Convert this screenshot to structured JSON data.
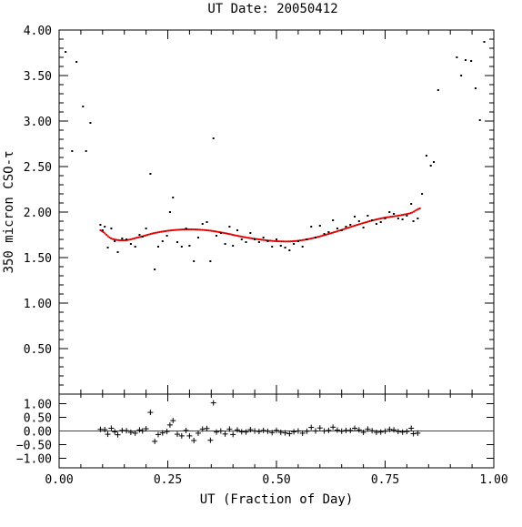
{
  "chart_data": [
    {
      "type": "scatter",
      "title": "UT Date: 20050412",
      "xlabel": "",
      "ylabel": "350 micron CSO-τ",
      "xlim": [
        0,
        1
      ],
      "ylim": [
        0,
        4
      ],
      "x_ticks": [
        "0.00",
        "0.25",
        "0.50",
        "0.75",
        "1.00"
      ],
      "y_ticks": [
        "0.50",
        "1.00",
        "1.50",
        "2.00",
        "2.50",
        "3.00",
        "3.50",
        "4.00"
      ],
      "grid": false,
      "colors": {
        "points": "#000000",
        "fit": "#e00000"
      },
      "series": [
        {
          "points": [
            [
              0.015,
              3.76
            ],
            [
              0.03,
              2.67
            ],
            [
              0.04,
              3.65
            ],
            [
              0.055,
              3.16
            ],
            [
              0.062,
              2.67
            ],
            [
              0.072,
              2.98
            ],
            [
              0.095,
              1.86
            ],
            [
              0.1,
              1.8
            ],
            [
              0.105,
              1.84
            ],
            [
              0.112,
              1.61
            ],
            [
              0.12,
              1.82
            ],
            [
              0.128,
              1.68
            ],
            [
              0.135,
              1.56
            ],
            [
              0.145,
              1.71
            ],
            [
              0.155,
              1.7
            ],
            [
              0.165,
              1.65
            ],
            [
              0.175,
              1.62
            ],
            [
              0.185,
              1.75
            ],
            [
              0.192,
              1.73
            ],
            [
              0.2,
              1.82
            ],
            [
              0.21,
              2.42
            ],
            [
              0.22,
              1.37
            ],
            [
              0.228,
              1.62
            ],
            [
              0.238,
              1.68
            ],
            [
              0.248,
              1.74
            ],
            [
              0.255,
              2.0
            ],
            [
              0.262,
              2.16
            ],
            [
              0.272,
              1.67
            ],
            [
              0.282,
              1.62
            ],
            [
              0.292,
              1.82
            ],
            [
              0.3,
              1.63
            ],
            [
              0.31,
              1.46
            ],
            [
              0.32,
              1.72
            ],
            [
              0.33,
              1.87
            ],
            [
              0.34,
              1.89
            ],
            [
              0.348,
              1.46
            ],
            [
              0.355,
              2.81
            ],
            [
              0.362,
              1.74
            ],
            [
              0.372,
              1.77
            ],
            [
              0.382,
              1.65
            ],
            [
              0.392,
              1.84
            ],
            [
              0.4,
              1.63
            ],
            [
              0.41,
              1.8
            ],
            [
              0.42,
              1.7
            ],
            [
              0.43,
              1.67
            ],
            [
              0.44,
              1.77
            ],
            [
              0.45,
              1.7
            ],
            [
              0.46,
              1.67
            ],
            [
              0.47,
              1.72
            ],
            [
              0.48,
              1.68
            ],
            [
              0.49,
              1.62
            ],
            [
              0.5,
              1.7
            ],
            [
              0.51,
              1.63
            ],
            [
              0.52,
              1.61
            ],
            [
              0.53,
              1.58
            ],
            [
              0.54,
              1.65
            ],
            [
              0.55,
              1.68
            ],
            [
              0.56,
              1.62
            ],
            [
              0.57,
              1.7
            ],
            [
              0.58,
              1.84
            ],
            [
              0.59,
              1.72
            ],
            [
              0.6,
              1.85
            ],
            [
              0.61,
              1.76
            ],
            [
              0.62,
              1.78
            ],
            [
              0.63,
              1.91
            ],
            [
              0.64,
              1.82
            ],
            [
              0.65,
              1.8
            ],
            [
              0.66,
              1.84
            ],
            [
              0.67,
              1.86
            ],
            [
              0.68,
              1.95
            ],
            [
              0.69,
              1.9
            ],
            [
              0.7,
              1.83
            ],
            [
              0.71,
              1.96
            ],
            [
              0.72,
              1.91
            ],
            [
              0.73,
              1.87
            ],
            [
              0.74,
              1.89
            ],
            [
              0.75,
              1.93
            ],
            [
              0.76,
              2.0
            ],
            [
              0.77,
              1.98
            ],
            [
              0.78,
              1.93
            ],
            [
              0.79,
              1.92
            ],
            [
              0.8,
              1.96
            ],
            [
              0.81,
              2.09
            ],
            [
              0.815,
              1.9
            ],
            [
              0.825,
              1.93
            ],
            [
              0.835,
              2.2
            ],
            [
              0.845,
              2.62
            ],
            [
              0.855,
              2.51
            ],
            [
              0.862,
              2.55
            ],
            [
              0.872,
              3.34
            ],
            [
              0.915,
              3.7
            ],
            [
              0.925,
              3.5
            ],
            [
              0.935,
              3.67
            ],
            [
              0.948,
              3.66
            ],
            [
              0.958,
              3.36
            ],
            [
              0.968,
              3.01
            ],
            [
              0.978,
              3.87
            ]
          ]
        },
        {
          "type": "line",
          "style": "dotted",
          "fit_range": [
            0.095,
            0.83
          ],
          "points": [
            [
              0.095,
              1.8
            ],
            [
              0.12,
              1.71
            ],
            [
              0.15,
              1.69
            ],
            [
              0.18,
              1.72
            ],
            [
              0.22,
              1.77
            ],
            [
              0.26,
              1.8
            ],
            [
              0.3,
              1.81
            ],
            [
              0.34,
              1.8
            ],
            [
              0.38,
              1.77
            ],
            [
              0.42,
              1.73
            ],
            [
              0.46,
              1.7
            ],
            [
              0.5,
              1.68
            ],
            [
              0.54,
              1.68
            ],
            [
              0.58,
              1.71
            ],
            [
              0.62,
              1.76
            ],
            [
              0.66,
              1.82
            ],
            [
              0.7,
              1.88
            ],
            [
              0.74,
              1.93
            ],
            [
              0.78,
              1.96
            ],
            [
              0.81,
              1.99
            ],
            [
              0.83,
              2.04
            ]
          ]
        }
      ]
    },
    {
      "type": "scatter",
      "title": "",
      "xlabel": "UT (Fraction of Day)",
      "ylabel": "",
      "xlim": [
        0,
        1
      ],
      "ylim": [
        -1.35,
        1.35
      ],
      "x_ticks": [
        "0.00",
        "0.25",
        "0.50",
        "0.75",
        "1.00"
      ],
      "y_ticks": [
        "1.00",
        "0.50",
        "0.00",
        "−0.50",
        "−1.00"
      ],
      "grid": false,
      "zero_line": true,
      "colors": {
        "points": "#000000",
        "zero_line": "#e00000"
      },
      "series": [
        {
          "marker": "plus",
          "points": [
            [
              0.095,
              0.06
            ],
            [
              0.105,
              0.05
            ],
            [
              0.112,
              -0.12
            ],
            [
              0.12,
              0.1
            ],
            [
              0.128,
              -0.03
            ],
            [
              0.135,
              -0.14
            ],
            [
              0.145,
              0.02
            ],
            [
              0.155,
              0.01
            ],
            [
              0.165,
              -0.05
            ],
            [
              0.175,
              -0.08
            ],
            [
              0.185,
              0.04
            ],
            [
              0.192,
              0.0
            ],
            [
              0.2,
              0.08
            ],
            [
              0.21,
              0.68
            ],
            [
              0.22,
              -0.38
            ],
            [
              0.228,
              -0.13
            ],
            [
              0.238,
              -0.07
            ],
            [
              0.248,
              -0.02
            ],
            [
              0.255,
              0.22
            ],
            [
              0.262,
              0.38
            ],
            [
              0.272,
              -0.12
            ],
            [
              0.282,
              -0.18
            ],
            [
              0.292,
              0.02
            ],
            [
              0.3,
              -0.18
            ],
            [
              0.31,
              -0.35
            ],
            [
              0.32,
              -0.08
            ],
            [
              0.33,
              0.07
            ],
            [
              0.34,
              0.09
            ],
            [
              0.348,
              -0.34
            ],
            [
              0.355,
              1.03
            ],
            [
              0.362,
              -0.04
            ],
            [
              0.372,
              0.0
            ],
            [
              0.382,
              -0.11
            ],
            [
              0.392,
              0.07
            ],
            [
              0.4,
              -0.13
            ],
            [
              0.41,
              0.04
            ],
            [
              0.42,
              -0.03
            ],
            [
              0.43,
              -0.04
            ],
            [
              0.44,
              0.05
            ],
            [
              0.45,
              0.0
            ],
            [
              0.46,
              -0.02
            ],
            [
              0.47,
              0.02
            ],
            [
              0.48,
              -0.01
            ],
            [
              0.49,
              -0.06
            ],
            [
              0.5,
              0.02
            ],
            [
              0.51,
              -0.05
            ],
            [
              0.52,
              -0.07
            ],
            [
              0.53,
              -0.1
            ],
            [
              0.54,
              -0.03
            ],
            [
              0.55,
              0.0
            ],
            [
              0.56,
              -0.08
            ],
            [
              0.57,
              -0.01
            ],
            [
              0.58,
              0.13
            ],
            [
              0.59,
              0.0
            ],
            [
              0.6,
              0.11
            ],
            [
              0.61,
              0.0
            ],
            [
              0.62,
              0.02
            ],
            [
              0.63,
              0.14
            ],
            [
              0.64,
              0.03
            ],
            [
              0.65,
              -0.01
            ],
            [
              0.66,
              0.02
            ],
            [
              0.67,
              0.02
            ],
            [
              0.68,
              0.1
            ],
            [
              0.69,
              0.04
            ],
            [
              0.7,
              -0.05
            ],
            [
              0.71,
              0.07
            ],
            [
              0.72,
              0.01
            ],
            [
              0.73,
              -0.05
            ],
            [
              0.74,
              -0.04
            ],
            [
              0.75,
              -0.01
            ],
            [
              0.76,
              0.06
            ],
            [
              0.77,
              0.04
            ],
            [
              0.78,
              -0.02
            ],
            [
              0.79,
              -0.04
            ],
            [
              0.8,
              -0.02
            ],
            [
              0.81,
              0.1
            ],
            [
              0.815,
              -0.1
            ],
            [
              0.825,
              -0.08
            ]
          ]
        }
      ]
    }
  ]
}
